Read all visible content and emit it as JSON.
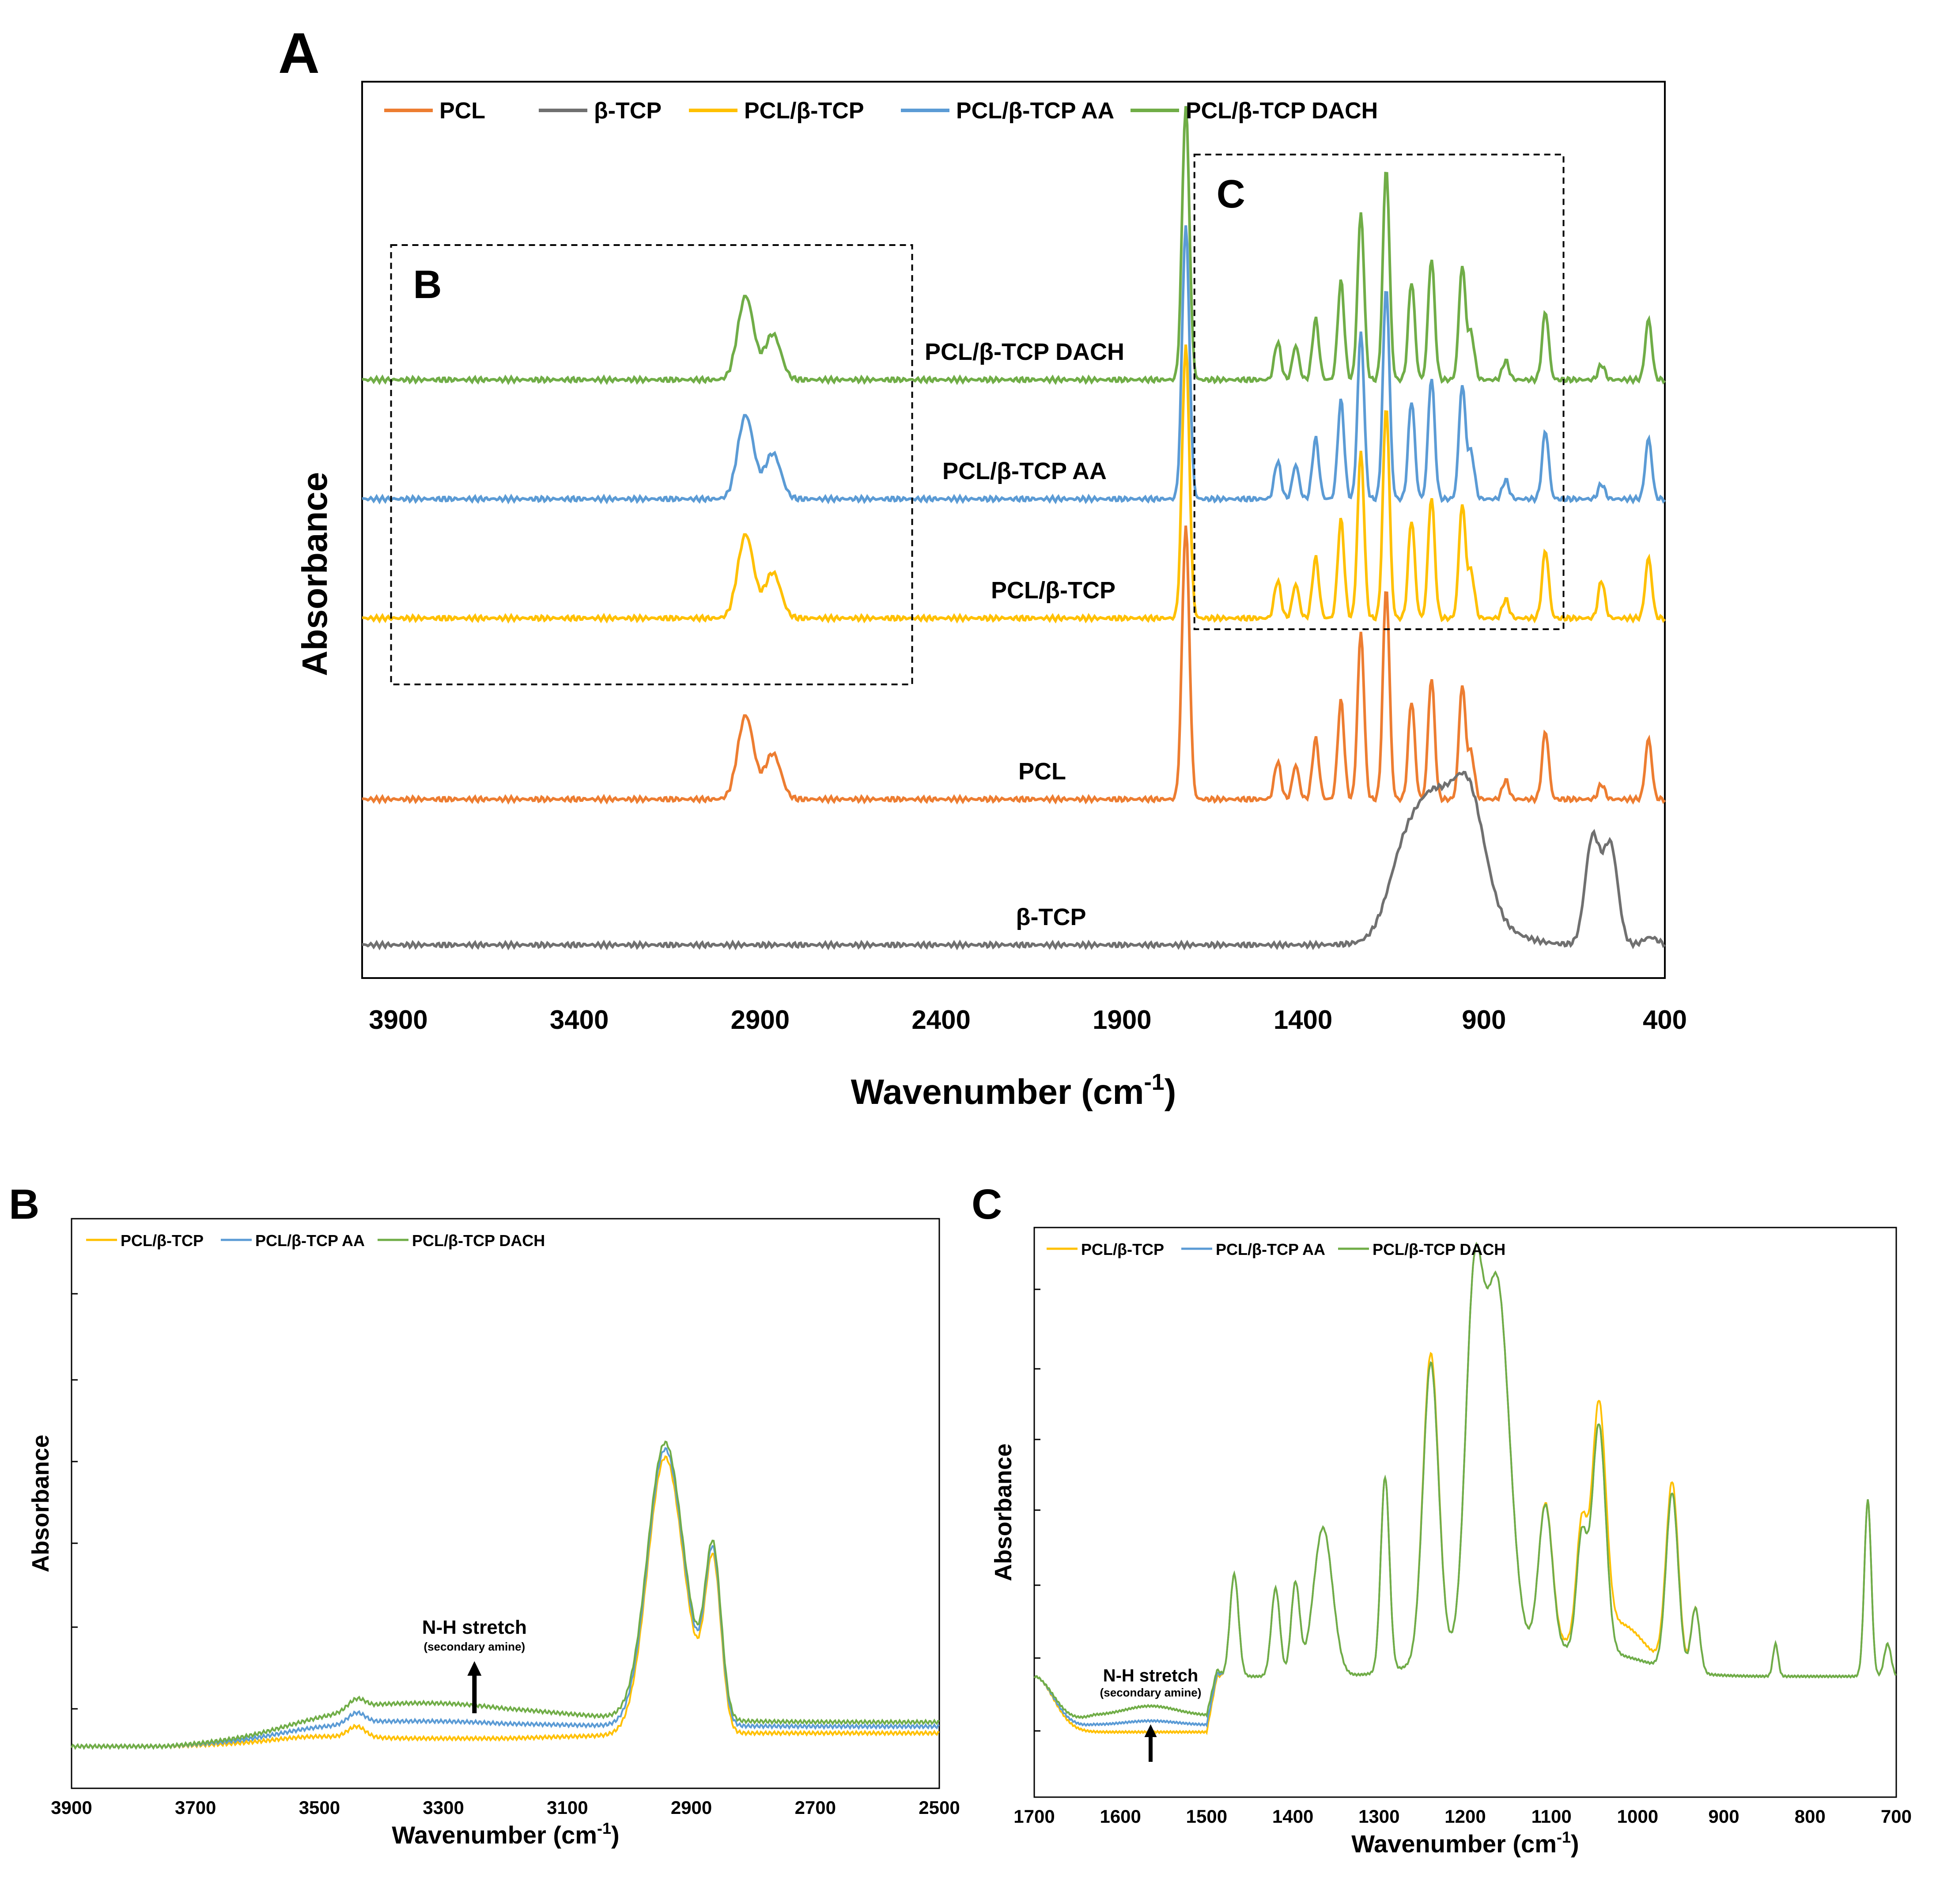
{
  "colors": {
    "PCL": "#ED7D31",
    "beta_TCP": "#707070",
    "PCL_bTCP": "#FFC000",
    "PCL_bTCP_AA": "#5B9BD5",
    "PCL_bTCP_DACH": "#70AD47"
  },
  "chart_data": [
    {
      "panel": "A",
      "type": "line",
      "xlabel": "Wavenumber (cm",
      "xlabel_sup": "-1",
      "xlabel_end": ")",
      "ylabel": "Absorbance",
      "xlim": [
        4000,
        400
      ],
      "xticks": [
        "3900",
        "3400",
        "2900",
        "2400",
        "1900",
        "1400",
        "900",
        "400"
      ],
      "xtick_values": [
        3900,
        3400,
        2900,
        2400,
        1900,
        1400,
        900,
        400
      ],
      "legend_position": "top",
      "legend": [
        "PCL",
        "β-TCP",
        "PCL/β-TCP",
        "PCL/β-TCP AA",
        "PCL/β-TCP DACH"
      ],
      "series_labels": [
        "PCL/β-TCP DACH",
        "PCL/β-TCP AA",
        "PCL/β-TCP",
        "PCL",
        "β-TCP"
      ],
      "inset_boxes": [
        {
          "label": "B",
          "x_range": [
            3920,
            2480
          ]
        },
        {
          "label": "C",
          "x_range": [
            1700,
            680
          ]
        }
      ],
      "series": [
        {
          "name": "PCL",
          "color_key": "PCL",
          "offset": 0.2,
          "peaks": [
            [
              2940,
              0.22
            ],
            [
              2865,
              0.12
            ],
            [
              1724,
              0.72
            ],
            [
              1470,
              0.1
            ],
            [
              1420,
              0.09
            ],
            [
              1365,
              0.16
            ],
            [
              1295,
              0.26
            ],
            [
              1240,
              0.44
            ],
            [
              1170,
              0.56
            ],
            [
              1100,
              0.26
            ],
            [
              1045,
              0.32
            ],
            [
              960,
              0.3
            ],
            [
              935,
              0.12
            ],
            [
              840,
              0.05
            ],
            [
              730,
              0.18
            ],
            [
              575,
              0.04
            ],
            [
              445,
              0.16
            ]
          ]
        },
        {
          "name": "β-TCP",
          "color_key": "beta_TCP",
          "offset": 0.0,
          "peaks": [
            [
              1120,
              0.2
            ],
            [
              1040,
              0.25
            ],
            [
              945,
              0.32
            ],
            [
              600,
              0.28
            ],
            [
              550,
              0.26
            ],
            [
              440,
              0.02
            ]
          ]
        },
        {
          "name": "PCL/β-TCP",
          "color_key": "PCL_bTCP",
          "offset": 0.53,
          "peaks": [
            [
              2940,
              0.22
            ],
            [
              2865,
              0.12
            ],
            [
              1724,
              0.72
            ],
            [
              1470,
              0.1
            ],
            [
              1420,
              0.09
            ],
            [
              1365,
              0.16
            ],
            [
              1295,
              0.26
            ],
            [
              1240,
              0.44
            ],
            [
              1170,
              0.56
            ],
            [
              1100,
              0.26
            ],
            [
              1045,
              0.32
            ],
            [
              960,
              0.3
            ],
            [
              935,
              0.12
            ],
            [
              840,
              0.05
            ],
            [
              730,
              0.18
            ],
            [
              575,
              0.1
            ],
            [
              445,
              0.16
            ]
          ]
        },
        {
          "name": "PCL/β-TCP AA",
          "color_key": "PCL_bTCP_AA",
          "offset": 0.68,
          "peaks": [
            [
              2940,
              0.22
            ],
            [
              2865,
              0.12
            ],
            [
              1724,
              0.72
            ],
            [
              1470,
              0.1
            ],
            [
              1420,
              0.09
            ],
            [
              1365,
              0.16
            ],
            [
              1295,
              0.26
            ],
            [
              1240,
              0.44
            ],
            [
              1170,
              0.56
            ],
            [
              1100,
              0.26
            ],
            [
              1045,
              0.32
            ],
            [
              960,
              0.3
            ],
            [
              935,
              0.12
            ],
            [
              840,
              0.05
            ],
            [
              730,
              0.18
            ],
            [
              575,
              0.04
            ],
            [
              445,
              0.16
            ]
          ]
        },
        {
          "name": "PCL/β-TCP DACH",
          "color_key": "PCL_bTCP_DACH",
          "offset": 0.83,
          "peaks": [
            [
              2940,
              0.22
            ],
            [
              2865,
              0.12
            ],
            [
              1724,
              0.72
            ],
            [
              1470,
              0.1
            ],
            [
              1420,
              0.09
            ],
            [
              1365,
              0.16
            ],
            [
              1295,
              0.26
            ],
            [
              1240,
              0.44
            ],
            [
              1170,
              0.56
            ],
            [
              1100,
              0.26
            ],
            [
              1045,
              0.32
            ],
            [
              960,
              0.3
            ],
            [
              935,
              0.12
            ],
            [
              840,
              0.05
            ],
            [
              730,
              0.18
            ],
            [
              575,
              0.04
            ],
            [
              445,
              0.16
            ]
          ]
        }
      ]
    },
    {
      "panel": "B",
      "type": "line",
      "xlabel": "Wavenumber (cm",
      "xlabel_sup": "-1",
      "xlabel_end": ")",
      "ylabel": "Absorbance",
      "xlim": [
        3900,
        2500
      ],
      "xticks": [
        "3900",
        "3700",
        "3500",
        "3300",
        "3100",
        "2900",
        "2700",
        "2500"
      ],
      "xtick_values": [
        3900,
        3700,
        3500,
        3300,
        3100,
        2900,
        2700,
        2500
      ],
      "legend_position": "top-left",
      "legend": [
        "PCL/β-TCP",
        "PCL/β-TCP AA",
        "PCL/β-TCP DACH"
      ],
      "annotation": {
        "text": "N-H stretch",
        "subtext": "(secondary amine)",
        "x": 3250
      },
      "series": [
        {
          "name": "PCL/β-TCP",
          "color_key": "PCL_bTCP",
          "baseline": 0.03,
          "nh": 0.0
        },
        {
          "name": "PCL/β-TCP AA",
          "color_key": "PCL_bTCP_AA",
          "baseline": 0.045,
          "nh": 0.03
        },
        {
          "name": "PCL/β-TCP DACH",
          "color_key": "PCL_bTCP_DACH",
          "baseline": 0.055,
          "nh": 0.065
        }
      ]
    },
    {
      "panel": "C",
      "type": "line",
      "xlabel": "Wavenumber (cm",
      "xlabel_sup": "-1",
      "xlabel_end": ")",
      "ylabel": "Absorbance",
      "xlim": [
        1700,
        700
      ],
      "xticks": [
        "1700",
        "1600",
        "1500",
        "1400",
        "1300",
        "1200",
        "1100",
        "1000",
        "900",
        "800",
        "700"
      ],
      "xtick_values": [
        1700,
        1600,
        1500,
        1400,
        1300,
        1200,
        1100,
        1000,
        900,
        800,
        700
      ],
      "legend_position": "top-left",
      "legend": [
        "PCL/β-TCP",
        "PCL/β-TCP AA",
        "PCL/β-TCP DACH"
      ],
      "annotation": {
        "text": "N-H stretch",
        "subtext": "(secondary amine)",
        "x": 1565
      },
      "series": [
        {
          "name": "PCL/β-TCP",
          "color_key": "PCL_bTCP",
          "lift": 0.0
        },
        {
          "name": "PCL/β-TCP AA",
          "color_key": "PCL_bTCP_AA",
          "lift": 0.015
        },
        {
          "name": "PCL/β-TCP DACH",
          "color_key": "PCL_bTCP_DACH",
          "lift": 0.035
        }
      ]
    }
  ]
}
